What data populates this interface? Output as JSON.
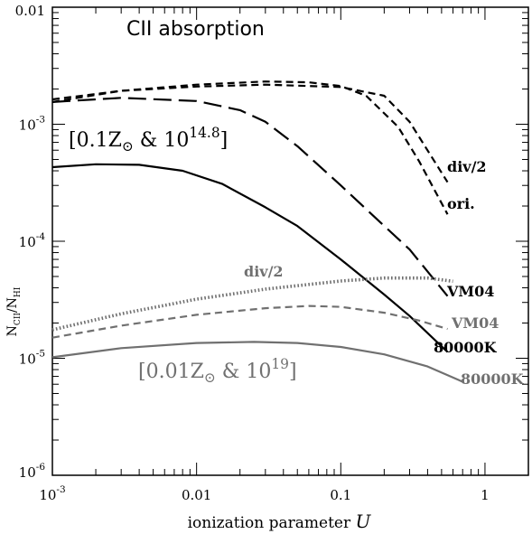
{
  "chart_data": {
    "type": "line",
    "title": "CII absorption",
    "xlabel": "ionization parameter",
    "xlabel_symbol": "U",
    "ylabel": "N_CII/N_HI",
    "xscale": "log",
    "yscale": "log",
    "xlim": [
      0.001,
      2
    ],
    "ylim": [
      1e-06,
      0.01
    ],
    "x_tick_labels": [
      "10^-3",
      "0.01",
      "0.1",
      "1"
    ],
    "y_tick_labels": [
      "10^-6",
      "10^-5",
      "10^-4",
      "10^-3",
      "0.01"
    ],
    "annotations": [
      {
        "text": "[0.1Z⊙ & 10^14.8]",
        "color": "#000000"
      },
      {
        "text": "[0.01Z⊙ & 10^19]",
        "color": "#707070"
      }
    ],
    "series": [
      {
        "name": "div/2",
        "group": "0.1Z",
        "color": "#000000",
        "style": "short-dash",
        "x": [
          0.001,
          0.003,
          0.01,
          0.03,
          0.1,
          0.2,
          0.3,
          0.55
        ],
        "y": [
          0.00163,
          0.00193,
          0.0021,
          0.00218,
          0.00208,
          0.00175,
          0.00105,
          0.00032
        ]
      },
      {
        "name": "ori.",
        "group": "0.1Z",
        "color": "#000000",
        "style": "short-dash",
        "x": [
          0.001,
          0.003,
          0.01,
          0.03,
          0.06,
          0.1,
          0.15,
          0.25,
          0.35,
          0.55
        ],
        "y": [
          0.00155,
          0.00193,
          0.00218,
          0.00232,
          0.00228,
          0.00212,
          0.00175,
          0.00095,
          0.00048,
          0.00017
        ]
      },
      {
        "name": "VM04",
        "group": "0.1Z",
        "color": "#000000",
        "style": "long-dash",
        "x": [
          0.001,
          0.003,
          0.01,
          0.02,
          0.03,
          0.05,
          0.1,
          0.2,
          0.3,
          0.55
        ],
        "y": [
          0.00155,
          0.00168,
          0.00158,
          0.00132,
          0.00105,
          0.00065,
          0.0003,
          0.000135,
          8.5e-05,
          3.4e-05
        ]
      },
      {
        "name": "80000K",
        "group": "0.1Z",
        "color": "#000000",
        "style": "solid",
        "x": [
          0.001,
          0.002,
          0.004,
          0.008,
          0.015,
          0.03,
          0.05,
          0.1,
          0.2,
          0.3,
          0.55
        ],
        "y": [
          0.00043,
          0.000455,
          0.00045,
          0.0004,
          0.00031,
          0.000195,
          0.000135,
          7e-05,
          3.5e-05,
          2.3e-05,
          1.13e-05
        ]
      },
      {
        "name": "div/2",
        "group": "0.01Z",
        "color": "#707070",
        "style": "dotted",
        "x": [
          0.001,
          0.003,
          0.01,
          0.03,
          0.1,
          0.2,
          0.4,
          0.6
        ],
        "y": [
          1.75e-05,
          2.4e-05,
          3.2e-05,
          3.9e-05,
          4.57e-05,
          4.85e-05,
          4.85e-05,
          4.55e-05
        ]
      },
      {
        "name": "VM04",
        "group": "0.01Z",
        "color": "#707070",
        "style": "short-dash",
        "x": [
          0.001,
          0.003,
          0.01,
          0.03,
          0.06,
          0.1,
          0.2,
          0.35,
          0.55
        ],
        "y": [
          1.5e-05,
          1.9e-05,
          2.35e-05,
          2.68e-05,
          2.8e-05,
          2.75e-05,
          2.45e-05,
          2.1e-05,
          1.78e-05
        ]
      },
      {
        "name": "80000K",
        "group": "0.01Z",
        "color": "#707070",
        "style": "solid",
        "x": [
          0.001,
          0.003,
          0.01,
          0.025,
          0.05,
          0.1,
          0.2,
          0.4,
          0.7
        ],
        "y": [
          1.02e-05,
          1.22e-05,
          1.35e-05,
          1.38e-05,
          1.35e-05,
          1.25e-05,
          1.08e-05,
          8.5e-06,
          6.3e-06
        ]
      }
    ]
  }
}
